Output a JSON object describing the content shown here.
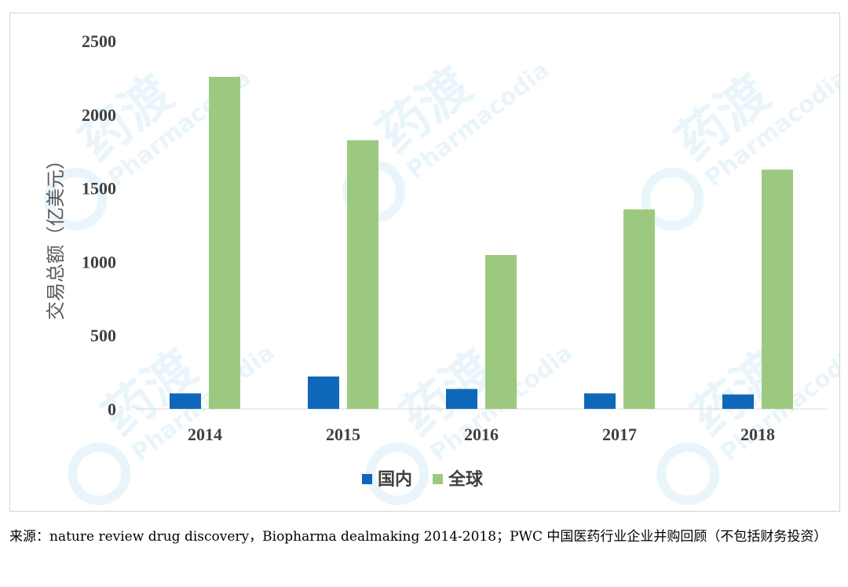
{
  "chart_data": {
    "type": "bar",
    "categories": [
      "2014",
      "2015",
      "2016",
      "2017",
      "2018"
    ],
    "series": [
      {
        "name": "国内",
        "color": "#0e67b8",
        "values": [
          105,
          220,
          135,
          105,
          98
        ]
      },
      {
        "name": "全球",
        "color": "#9cc97f",
        "values": [
          2255,
          1825,
          1045,
          1355,
          1625
        ]
      }
    ],
    "ylabel": "交易总额（亿美元）",
    "xlabel": "",
    "ylim": [
      0,
      2500
    ],
    "yticks": [
      "0",
      "500",
      "1000",
      "1500",
      "2000",
      "2500"
    ],
    "grid": false,
    "legend_position": "bottom-center"
  },
  "source_note": "来源：nature review drug discovery，Biopharma dealmaking 2014-2018；PWC 中国医药行业企业并购回顾（不包括财务投资）",
  "watermark": {
    "text": "药渡",
    "subtext": "Pharmacodia",
    "color": "#5bb8e6"
  }
}
